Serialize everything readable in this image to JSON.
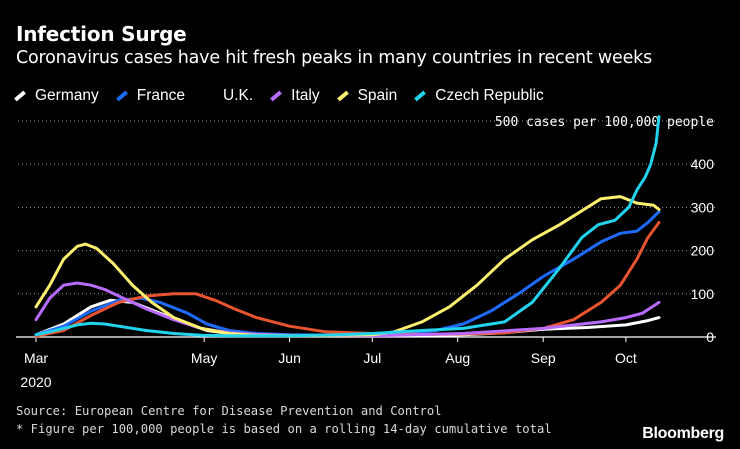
{
  "header": {
    "title": "Infection Surge",
    "subtitle": "Coronavirus cases have hit fresh peaks in many countries in recent weeks"
  },
  "footer": {
    "source": "Source: European Centre for Disease Prevention and Control",
    "note": "* Figure per 100,000 people is based on a rolling 14-day cumulative total",
    "brand": "Bloomberg"
  },
  "chart_data": {
    "type": "line",
    "title": "Infection Surge",
    "subtitle": "Coronavirus cases have hit fresh peaks in many countries in recent weeks",
    "ylabel": "cases per 100,000 people",
    "y_top_label": "500 cases per 100,000 people",
    "ylim": [
      0,
      530
    ],
    "y_ticks": [
      0,
      100,
      200,
      300,
      400,
      500
    ],
    "y_tick_labels": [
      "0",
      "100",
      "200",
      "300",
      "400",
      "500 cases per 100,000 people"
    ],
    "x_unit": "days since Mar 1, 2020",
    "xlim": [
      0,
      230
    ],
    "x_ticks": [
      0,
      61,
      92,
      122,
      153,
      184,
      214
    ],
    "x_tick_labels": [
      "Mar",
      "May",
      "Jun",
      "Jul",
      "Aug",
      "Sep",
      "Oct"
    ],
    "x_year_label": "2020",
    "legend_position": "top-left",
    "grid": "horizontal-dotted",
    "series": [
      {
        "name": "Germany",
        "color": "#ffffff",
        "x": [
          0,
          10,
          20,
          27,
          35,
          45,
          55,
          62,
          70,
          80,
          92,
          110,
          122,
          140,
          155,
          170,
          184,
          200,
          214,
          222,
          226
        ],
        "y": [
          5,
          30,
          70,
          85,
          80,
          55,
          30,
          15,
          8,
          5,
          3,
          2,
          2,
          3,
          5,
          10,
          18,
          22,
          28,
          38,
          45
        ]
      },
      {
        "name": "France",
        "color": "#1e6bff",
        "x": [
          0,
          10,
          20,
          30,
          38,
          45,
          55,
          62,
          70,
          80,
          92,
          110,
          122,
          135,
          145,
          155,
          165,
          175,
          184,
          195,
          205,
          212,
          218,
          222,
          226
        ],
        "y": [
          5,
          25,
          60,
          85,
          90,
          80,
          55,
          30,
          15,
          8,
          5,
          4,
          5,
          10,
          15,
          30,
          60,
          100,
          140,
          180,
          220,
          240,
          245,
          265,
          290
        ]
      },
      {
        "name": "U.K.",
        "color": "#e8542f",
        "x": [
          0,
          10,
          20,
          30,
          40,
          50,
          58,
          65,
          72,
          80,
          92,
          105,
          122,
          140,
          155,
          170,
          184,
          195,
          205,
          212,
          218,
          222,
          226
        ],
        "y": [
          2,
          15,
          50,
          80,
          95,
          100,
          100,
          85,
          65,
          45,
          25,
          12,
          8,
          6,
          7,
          10,
          20,
          40,
          80,
          120,
          180,
          230,
          265
        ]
      },
      {
        "name": "Italy",
        "color": "#b86bff",
        "x": [
          0,
          5,
          10,
          15,
          20,
          25,
          30,
          40,
          50,
          60,
          70,
          80,
          92,
          122,
          155,
          184,
          205,
          214,
          220,
          226
        ],
        "y": [
          40,
          90,
          120,
          125,
          120,
          110,
          95,
          65,
          40,
          20,
          10,
          6,
          4,
          3,
          8,
          20,
          35,
          45,
          55,
          80
        ]
      },
      {
        "name": "Spain",
        "color": "#fff06e",
        "x": [
          0,
          5,
          10,
          15,
          18,
          22,
          28,
          35,
          42,
          50,
          60,
          70,
          80,
          92,
          110,
          122,
          130,
          140,
          150,
          160,
          170,
          180,
          190,
          200,
          205,
          212,
          218,
          224,
          226
        ],
        "y": [
          70,
          120,
          180,
          210,
          215,
          205,
          170,
          120,
          80,
          45,
          20,
          8,
          4,
          3,
          4,
          5,
          12,
          35,
          70,
          120,
          180,
          225,
          260,
          300,
          320,
          325,
          310,
          305,
          295
        ]
      },
      {
        "name": "Czech Republic",
        "color": "#22d3ee",
        "x": [
          0,
          5,
          10,
          15,
          20,
          25,
          30,
          40,
          50,
          60,
          70,
          80,
          92,
          110,
          122,
          140,
          155,
          170,
          180,
          190,
          198,
          204,
          210,
          215,
          218,
          221,
          223,
          225,
          226
        ],
        "y": [
          5,
          12,
          20,
          28,
          32,
          30,
          25,
          15,
          8,
          4,
          3,
          3,
          3,
          5,
          8,
          15,
          20,
          35,
          80,
          160,
          230,
          260,
          270,
          300,
          340,
          370,
          400,
          450,
          510
        ]
      }
    ]
  }
}
